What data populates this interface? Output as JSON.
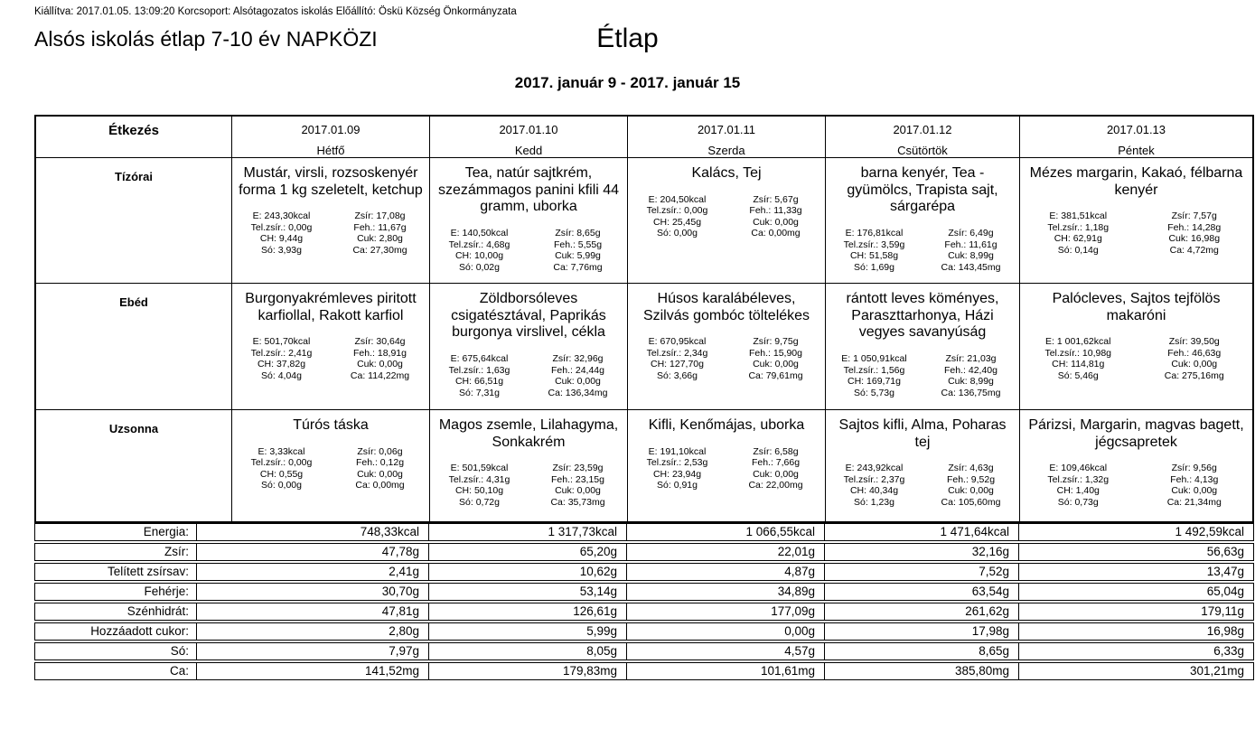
{
  "header": {
    "issued": "Kiállítva: 2017.01.05. 13:09:20 Korcsoport: Alsótagozatos iskolás Előállító: Öskü Község Önkormányzata",
    "title_left": "Alsós iskolás étlap 7-10 év NAPKÖZI",
    "title_center": "Étlap",
    "date_range": "2017. január 9 - 2017. január 15"
  },
  "menu": {
    "corner": "Étkezés",
    "days": [
      {
        "date": "2017.01.09",
        "day": "Hétfő"
      },
      {
        "date": "2017.01.10",
        "day": "Kedd"
      },
      {
        "date": "2017.01.11",
        "day": "Szerda"
      },
      {
        "date": "2017.01.12",
        "day": "Csütörtök"
      },
      {
        "date": "2017.01.13",
        "day": "Péntek"
      }
    ],
    "meals": [
      {
        "label": "Tízórai",
        "cells": [
          {
            "dish": "Mustár, virsli, rozsoskenyér forma 1 kg szeletelt, ketchup",
            "left": [
              "E: 243,30kcal",
              "Tel.zsír.: 0,00g",
              "CH: 9,44g",
              "Só: 3,93g"
            ],
            "right": [
              "Zsír: 17,08g",
              "Feh.: 11,67g",
              "Cuk: 2,80g",
              "Ca: 27,30mg"
            ]
          },
          {
            "dish": "Tea, natúr sajtkrém, szezámmagos panini kfili 44 gramm, uborka",
            "left": [
              "E: 140,50kcal",
              "Tel.zsír.: 4,68g",
              "CH: 10,00g",
              "Só: 0,02g"
            ],
            "right": [
              "Zsír: 8,65g",
              "Feh.: 5,55g",
              "Cuk: 5,99g",
              "Ca: 7,76mg"
            ]
          },
          {
            "dish": "Kalács, Tej",
            "left": [
              "E: 204,50kcal",
              "Tel.zsír.: 0,00g",
              "CH: 25,45g",
              "Só: 0,00g"
            ],
            "right": [
              "Zsír: 5,67g",
              "Feh.: 11,33g",
              "Cuk: 0,00g",
              "Ca: 0,00mg"
            ]
          },
          {
            "dish": "barna kenyér, Tea - gyümölcs, Trapista sajt, sárgarépa",
            "left": [
              "E: 176,81kcal",
              "Tel.zsír.: 3,59g",
              "CH: 51,58g",
              "Só: 1,69g"
            ],
            "right": [
              "Zsír: 6,49g",
              "Feh.: 11,61g",
              "Cuk: 8,99g",
              "Ca: 143,45mg"
            ]
          },
          {
            "dish": "Mézes margarin, Kakaó, félbarna kenyér",
            "left": [
              "E: 381,51kcal",
              "Tel.zsír.: 1,18g",
              "CH: 62,91g",
              "Só: 0,14g"
            ],
            "right": [
              "Zsír: 7,57g",
              "Feh.: 14,28g",
              "Cuk: 16,98g",
              "Ca: 4,72mg"
            ]
          }
        ]
      },
      {
        "label": "Ebéd",
        "cells": [
          {
            "dish": "Burgonyakrémleves piritott karfiollal, Rakott karfiol",
            "left": [
              "E: 501,70kcal",
              "Tel.zsír.: 2,41g",
              "CH: 37,82g",
              "Só: 4,04g"
            ],
            "right": [
              "Zsír: 30,64g",
              "Feh.: 18,91g",
              "Cuk: 0,00g",
              "Ca: 114,22mg"
            ]
          },
          {
            "dish": "Zöldborsóleves csigatésztával, Paprikás burgonya virslivel, cékla",
            "left": [
              "E: 675,64kcal",
              "Tel.zsír.: 1,63g",
              "CH: 66,51g",
              "Só: 7,31g"
            ],
            "right": [
              "Zsír: 32,96g",
              "Feh.: 24,44g",
              "Cuk: 0,00g",
              "Ca: 136,34mg"
            ]
          },
          {
            "dish": "Húsos karalábéleves, Szilvás gombóc töltelékes",
            "left": [
              "E: 670,95kcal",
              "Tel.zsír.: 2,34g",
              "CH: 127,70g",
              "Só: 3,66g"
            ],
            "right": [
              "Zsír: 9,75g",
              "Feh.: 15,90g",
              "Cuk: 0,00g",
              "Ca: 79,61mg"
            ]
          },
          {
            "dish": "rántott leves köményes, Paraszttarhonya, Házi vegyes savanyúság",
            "left": [
              "E: 1 050,91kcal",
              "Tel.zsír.: 1,56g",
              "CH: 169,71g",
              "Só: 5,73g"
            ],
            "right": [
              "Zsír: 21,03g",
              "Feh.: 42,40g",
              "Cuk: 8,99g",
              "Ca: 136,75mg"
            ]
          },
          {
            "dish": "Palócleves, Sajtos tejfölös makaróni",
            "left": [
              "E: 1 001,62kcal",
              "Tel.zsír.: 10,98g",
              "CH: 114,81g",
              "Só: 5,46g"
            ],
            "right": [
              "Zsír: 39,50g",
              "Feh.: 46,63g",
              "Cuk: 0,00g",
              "Ca: 275,16mg"
            ]
          }
        ]
      },
      {
        "label": "Uzsonna",
        "cells": [
          {
            "dish": "Túrós táska",
            "left": [
              "E: 3,33kcal",
              "Tel.zsír.: 0,00g",
              "CH: 0,55g",
              "Só: 0,00g"
            ],
            "right": [
              "Zsír: 0,06g",
              "Feh.: 0,12g",
              "Cuk: 0,00g",
              "Ca: 0,00mg"
            ]
          },
          {
            "dish": "Magos zsemle, Lilahagyma, Sonkakrém",
            "left": [
              "E: 501,59kcal",
              "Tel.zsír.: 4,31g",
              "CH: 50,10g",
              "Só: 0,72g"
            ],
            "right": [
              "Zsír: 23,59g",
              "Feh.: 23,15g",
              "Cuk: 0,00g",
              "Ca: 35,73mg"
            ]
          },
          {
            "dish": "Kifli, Kenőmájas, uborka",
            "left": [
              "E: 191,10kcal",
              "Tel.zsír.: 2,53g",
              "CH: 23,94g",
              "Só: 0,91g"
            ],
            "right": [
              "Zsír: 6,58g",
              "Feh.: 7,66g",
              "Cuk: 0,00g",
              "Ca: 22,00mg"
            ]
          },
          {
            "dish": "Sajtos kifli, Alma, Poharas tej",
            "left": [
              "E: 243,92kcal",
              "Tel.zsír.: 2,37g",
              "CH: 40,34g",
              "Só: 1,23g"
            ],
            "right": [
              "Zsír: 4,63g",
              "Feh.: 9,52g",
              "Cuk: 0,00g",
              "Ca: 105,60mg"
            ]
          },
          {
            "dish": "Párizsi, Margarin, magvas bagett, jégcsapretek",
            "left": [
              "E: 109,46kcal",
              "Tel.zsír.: 1,32g",
              "CH: 1,40g",
              "Só: 0,73g"
            ],
            "right": [
              "Zsír: 9,56g",
              "Feh.: 4,13g",
              "Cuk: 0,00g",
              "Ca: 21,34mg"
            ]
          }
        ]
      }
    ],
    "totals": [
      {
        "label": "Energia:",
        "values": [
          "748,33kcal",
          "1 317,73kcal",
          "1 066,55kcal",
          "1 471,64kcal",
          "1 492,59kcal"
        ]
      },
      {
        "label": "Zsír:",
        "values": [
          "47,78g",
          "65,20g",
          "22,01g",
          "32,16g",
          "56,63g"
        ]
      },
      {
        "label": "Telített zsírsav:",
        "values": [
          "2,41g",
          "10,62g",
          "4,87g",
          "7,52g",
          "13,47g"
        ]
      },
      {
        "label": "Fehérje:",
        "values": [
          "30,70g",
          "53,14g",
          "34,89g",
          "63,54g",
          "65,04g"
        ]
      },
      {
        "label": "Szénhidrát:",
        "values": [
          "47,81g",
          "126,61g",
          "177,09g",
          "261,62g",
          "179,11g"
        ]
      },
      {
        "label": "Hozzáadott cukor:",
        "values": [
          "2,80g",
          "5,99g",
          "0,00g",
          "17,98g",
          "16,98g"
        ]
      },
      {
        "label": "Só:",
        "values": [
          "7,97g",
          "8,05g",
          "4,57g",
          "8,65g",
          "6,33g"
        ]
      },
      {
        "label": "Ca:",
        "values": [
          "141,52mg",
          "179,83mg",
          "101,61mg",
          "385,80mg",
          "301,21mg"
        ]
      }
    ]
  }
}
